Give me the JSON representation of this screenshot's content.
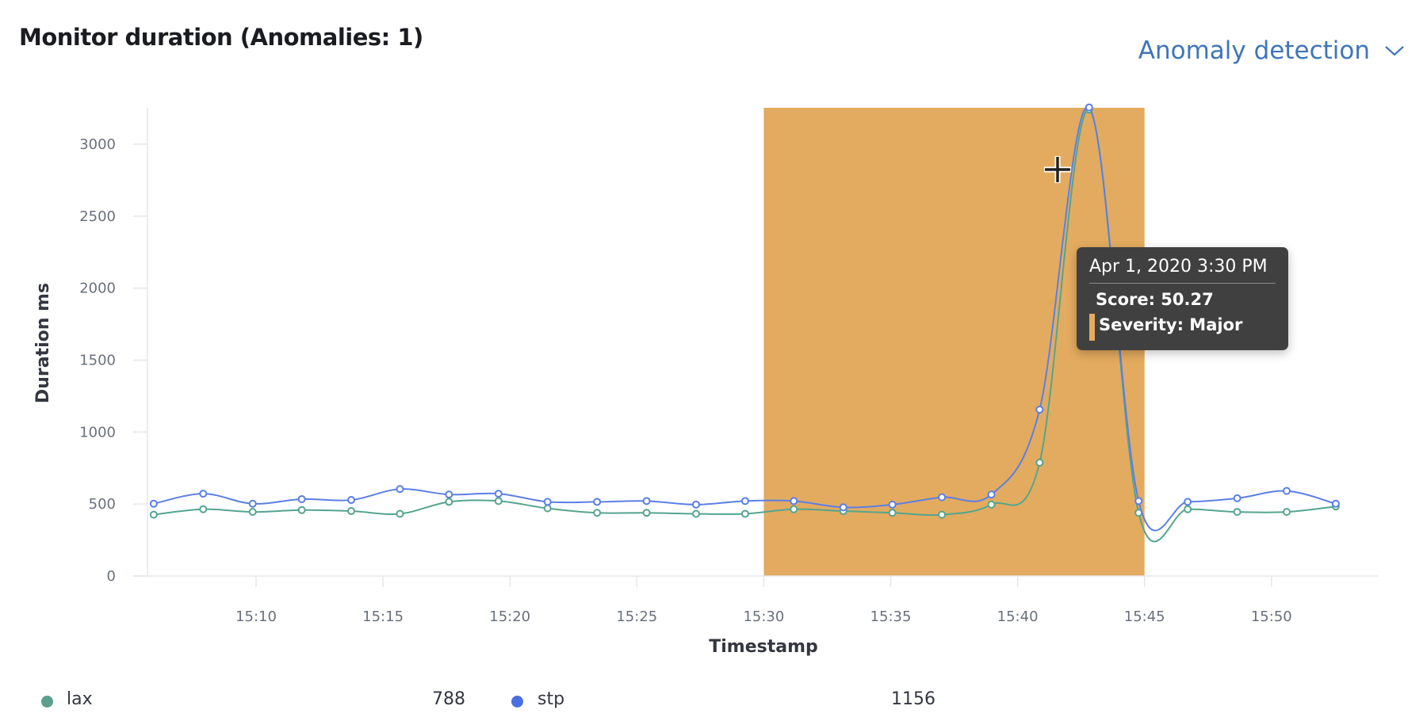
{
  "header": {
    "title": "Monitor duration (Anomalies: 1)",
    "anomaly_menu_label": "Anomaly detection",
    "anomaly_menu_icon": "chevron-down-icon"
  },
  "chart_data": {
    "type": "line",
    "xlabel": "Timestamp",
    "ylabel": "Duration ms",
    "ylim": [
      0,
      3250
    ],
    "yticks": [
      "0",
      "500",
      "1000",
      "1500",
      "2000",
      "2500",
      "3000"
    ],
    "xticks": [
      "15:10",
      "15:15",
      "15:20",
      "15:25",
      "15:30",
      "15:35",
      "15:40",
      "15:45",
      "15:50"
    ],
    "grid": false,
    "x": [
      "15:05:58",
      "15:07:55",
      "15:09:52",
      "15:11:48",
      "15:13:45",
      "15:15:40",
      "15:17:36",
      "15:19:33",
      "15:21:29",
      "15:23:26",
      "15:25:23",
      "15:27:20",
      "15:29:16",
      "15:31:11",
      "15:33:08",
      "15:35:04",
      "15:37:01",
      "15:38:58",
      "15:40:52",
      "15:42:49",
      "15:44:46",
      "15:46:42",
      "15:48:39",
      "15:50:36",
      "15:52:32"
    ],
    "series": [
      {
        "name": "lax",
        "color": "#54a58e",
        "values": [
          426,
          464,
          445,
          458,
          451,
          432,
          515,
          521,
          470,
          439,
          439,
          432,
          432,
          464,
          451,
          439,
          426,
          496,
          788,
          3240,
          439,
          464,
          445,
          445,
          483
        ]
      },
      {
        "name": "stp",
        "color": "#5b7fe6",
        "values": [
          502,
          572,
          502,
          534,
          528,
          604,
          566,
          572,
          515,
          515,
          521,
          496,
          521,
          521,
          477,
          496,
          547,
          566,
          1156,
          3255,
          521,
          515,
          540,
          591,
          502
        ]
      }
    ],
    "anomaly_band": {
      "start": "15:30:00",
      "end": "15:45:00",
      "color": "#e3ab5f",
      "severity": "Major"
    },
    "legend": [
      {
        "name": "lax",
        "value": "788",
        "color": "#5a9e8c"
      },
      {
        "name": "stp",
        "value": "1156",
        "color": "#4a6fe3"
      }
    ]
  },
  "tooltip": {
    "date": "Apr 1, 2020 3:30 PM",
    "score": "Score: 50.27",
    "severity": "Severity: Major"
  }
}
